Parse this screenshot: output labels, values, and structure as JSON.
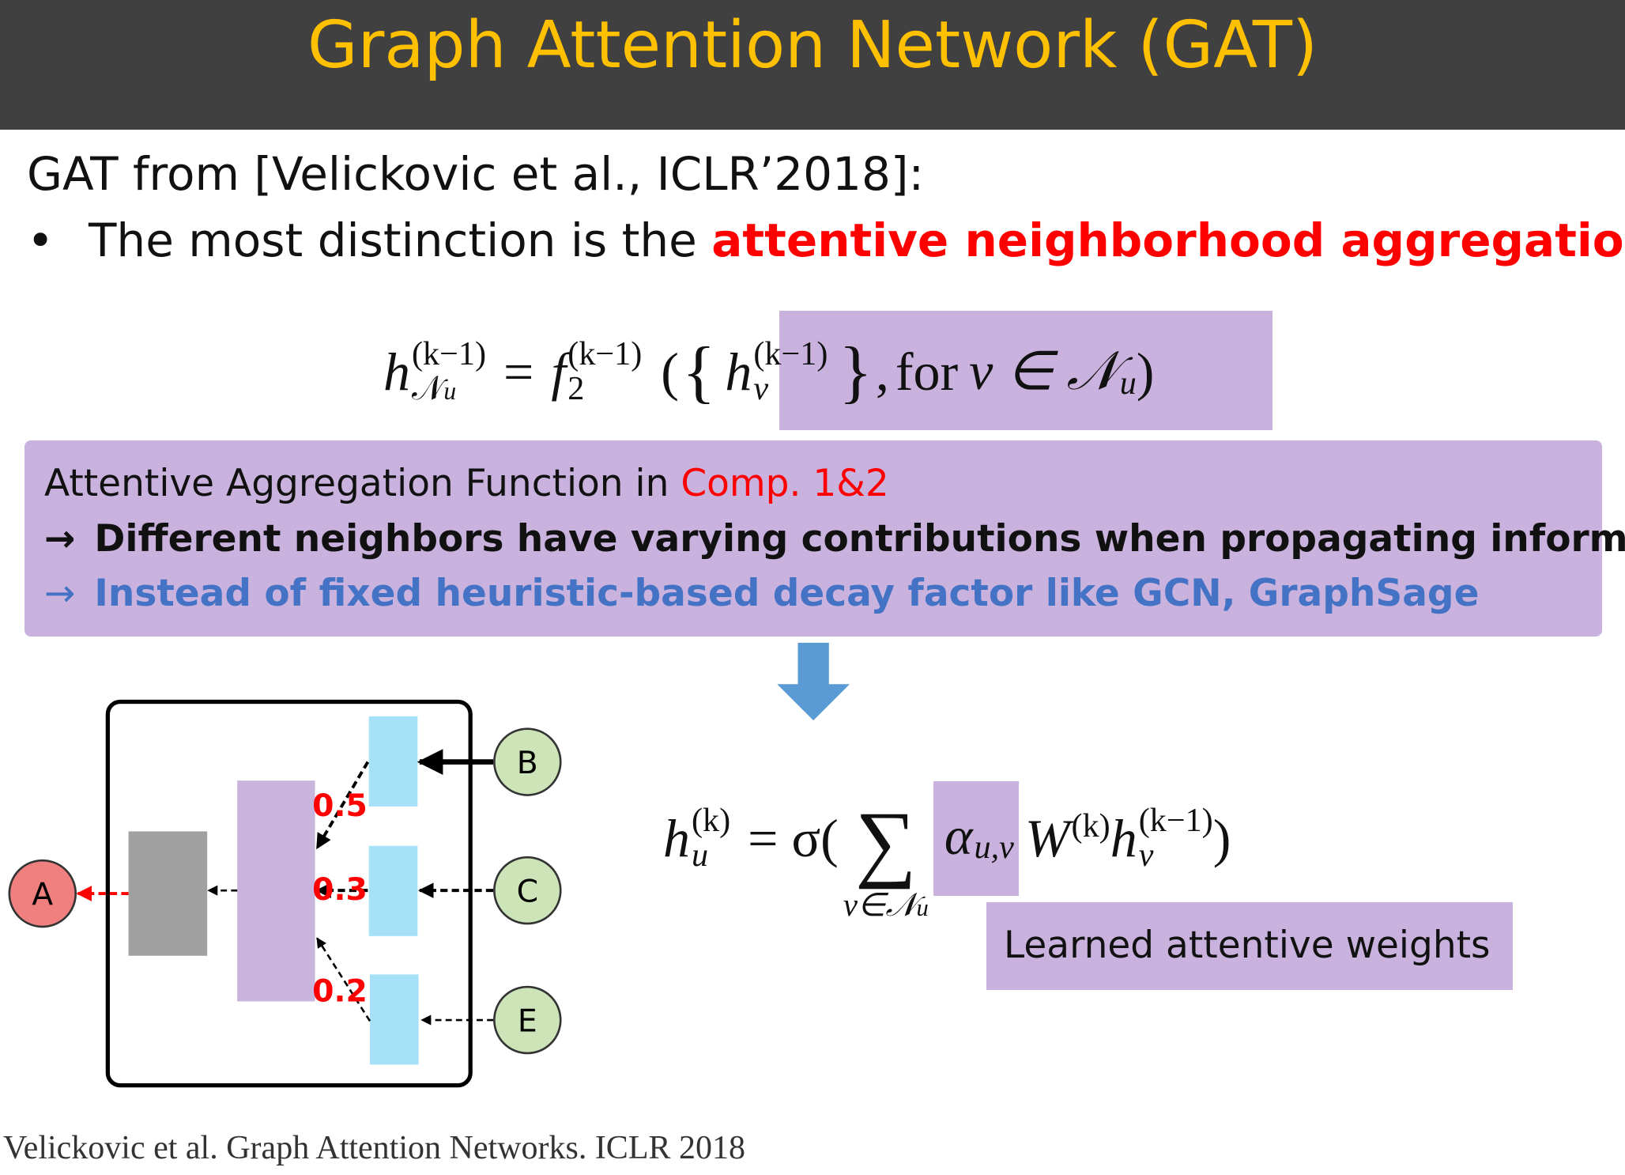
{
  "header": {
    "title": "Graph Attention Network (GAT)"
  },
  "intro": {
    "source": "GAT from [Velickovic et al., ICLR’2018]:",
    "bullet": "•",
    "text": "The most distinction is the ",
    "highlight": "attentive neighborhood aggregation"
  },
  "equation_1": {
    "h": "h",
    "h_sup": "(k−1)",
    "h_sub": "𝒩",
    "h_sub_sub": "u",
    "eq": "=",
    "f": "f",
    "f_sup": "(k−1)",
    "f_sub": "2",
    "open": "(",
    "brace_open": "{",
    "hv": "h",
    "hv_sup": "(k−1)",
    "hv_sub": "v",
    "brace_close": "}",
    "comma": ",",
    "for": "for",
    "set": "v ∈ 𝒩",
    "set_sub": "u",
    "close": ")"
  },
  "box": {
    "line_1": "Attentive Aggregation Function in ",
    "line_1_red": "Comp. 1&2",
    "arrow": "→",
    "line_2": "Different neighbors have varying contributions when propagating information.",
    "line_3": "Instead of fixed heuristic-based decay factor like GCN, GraphSage"
  },
  "diagram": {
    "nodes": [
      "A",
      "B",
      "C",
      "E"
    ],
    "weights": [
      "0.5",
      "0.3",
      "0.2"
    ]
  },
  "equation_2": {
    "h": "h",
    "h_sup": "(k)",
    "h_sub": "u",
    "eq": "= σ(",
    "sum": "∑",
    "sum_sub": "v∈𝒩",
    "sum_sub_sub": "u",
    "alpha": "α",
    "alpha_sub": "u,v",
    "w": "W",
    "w_sup": "(k)",
    "hv": "h",
    "hv_sup": "(k−1)",
    "hv_sub": "v",
    "close": ")"
  },
  "note": "Learned attentive weights",
  "footer": "Velickovic et al. Graph Attention Networks. ICLR 2018"
}
